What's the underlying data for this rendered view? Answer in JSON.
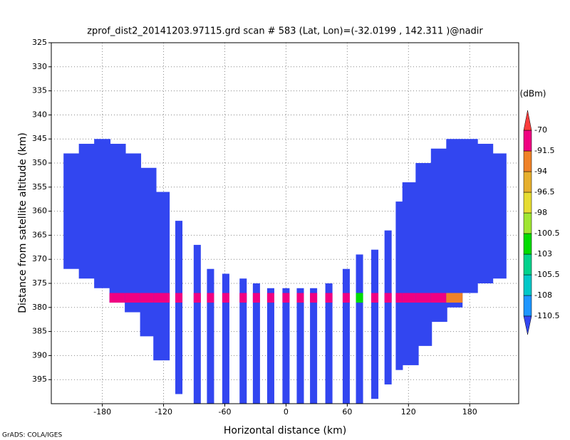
{
  "chart_data": {
    "type": "profile",
    "title": "zprof_dist2_20141203.97115.grd  scan # 583  (Lat, Lon)=(-32.0199 , 142.311 )@nadir",
    "x_label": "Horizontal distance (km)",
    "y_label": "Distance from satellite altitude (km)",
    "colorbar_label": "(dBm)",
    "footer": "GrADS: COLA/IGES",
    "xlim": [
      -230,
      228
    ],
    "ylim": [
      325,
      400
    ],
    "y_inverted": true,
    "xticks": [
      -180,
      -120,
      -60,
      0,
      60,
      120,
      180
    ],
    "yticks": [
      325,
      330,
      335,
      340,
      345,
      350,
      355,
      360,
      365,
      370,
      375,
      380,
      385,
      390,
      395
    ],
    "grid": true,
    "levels": [
      -110.5,
      -108,
      -105.5,
      -103,
      -100.5,
      -98,
      -96.5,
      -94,
      -91.5,
      -70
    ],
    "level_colors": [
      "#3246f0",
      "#1e96ff",
      "#00c8c8",
      "#00d28c",
      "#00dc00",
      "#a0e632",
      "#e6dc32",
      "#e6af2d",
      "#f08228",
      "#f00082",
      "#fa3c3c"
    ],
    "background_value": -111,
    "bright_band_altitude": 378,
    "x": [
      -210,
      -195,
      -180,
      -165,
      -150,
      -135,
      -122,
      -105,
      -87,
      -74,
      -59,
      -42,
      -29,
      -15,
      0,
      14,
      27,
      42,
      59,
      72,
      87,
      100,
      111,
      122,
      135,
      150,
      165,
      180,
      195,
      208
    ],
    "top": [
      348,
      346,
      345,
      346,
      348,
      351,
      356,
      362,
      367,
      372,
      373,
      374,
      375,
      376,
      376,
      376,
      376,
      375,
      372,
      369,
      368,
      364,
      358,
      354,
      350,
      347,
      345,
      345,
      346,
      348
    ],
    "bottom": [
      372,
      374,
      376,
      379,
      381,
      386,
      391,
      398,
      400,
      400,
      400,
      400,
      400,
      400,
      400,
      400,
      400,
      400,
      400,
      400,
      399,
      396,
      393,
      392,
      388,
      383,
      380,
      377,
      375,
      374
    ],
    "peak": [
      -108,
      -108,
      -108,
      -91,
      -91,
      -91,
      -91,
      -91,
      -91,
      -91,
      -91,
      -91,
      -91,
      -91,
      -91,
      -91,
      -91,
      -91,
      -91,
      -103,
      -91,
      -91,
      -91,
      -91,
      -91,
      -91,
      -94,
      -108,
      -108,
      -108
    ]
  }
}
